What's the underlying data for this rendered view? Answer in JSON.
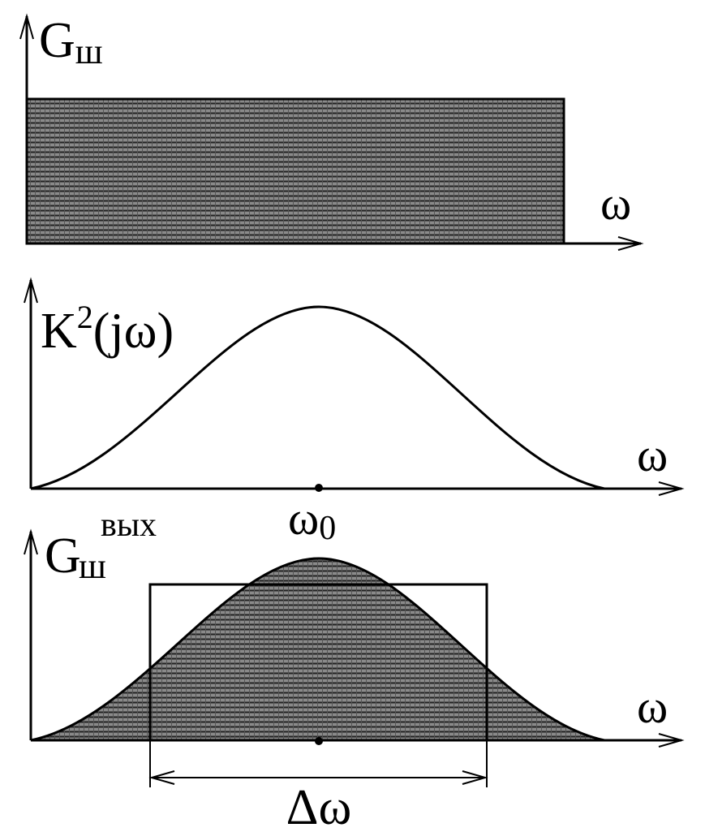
{
  "panels": [
    {
      "label": {
        "main": "G",
        "sub": "ш"
      },
      "axis": "ω"
    },
    {
      "label": {
        "main": "K",
        "sup": "2",
        "tail": "(jω)"
      },
      "axis": "ω",
      "center": {
        "main": "ω",
        "sub": "0"
      }
    },
    {
      "label": {
        "main": "G",
        "sup": "вых",
        "sub": "ш"
      },
      "axis": "ω",
      "bandwidth": "Δω"
    }
  ]
}
